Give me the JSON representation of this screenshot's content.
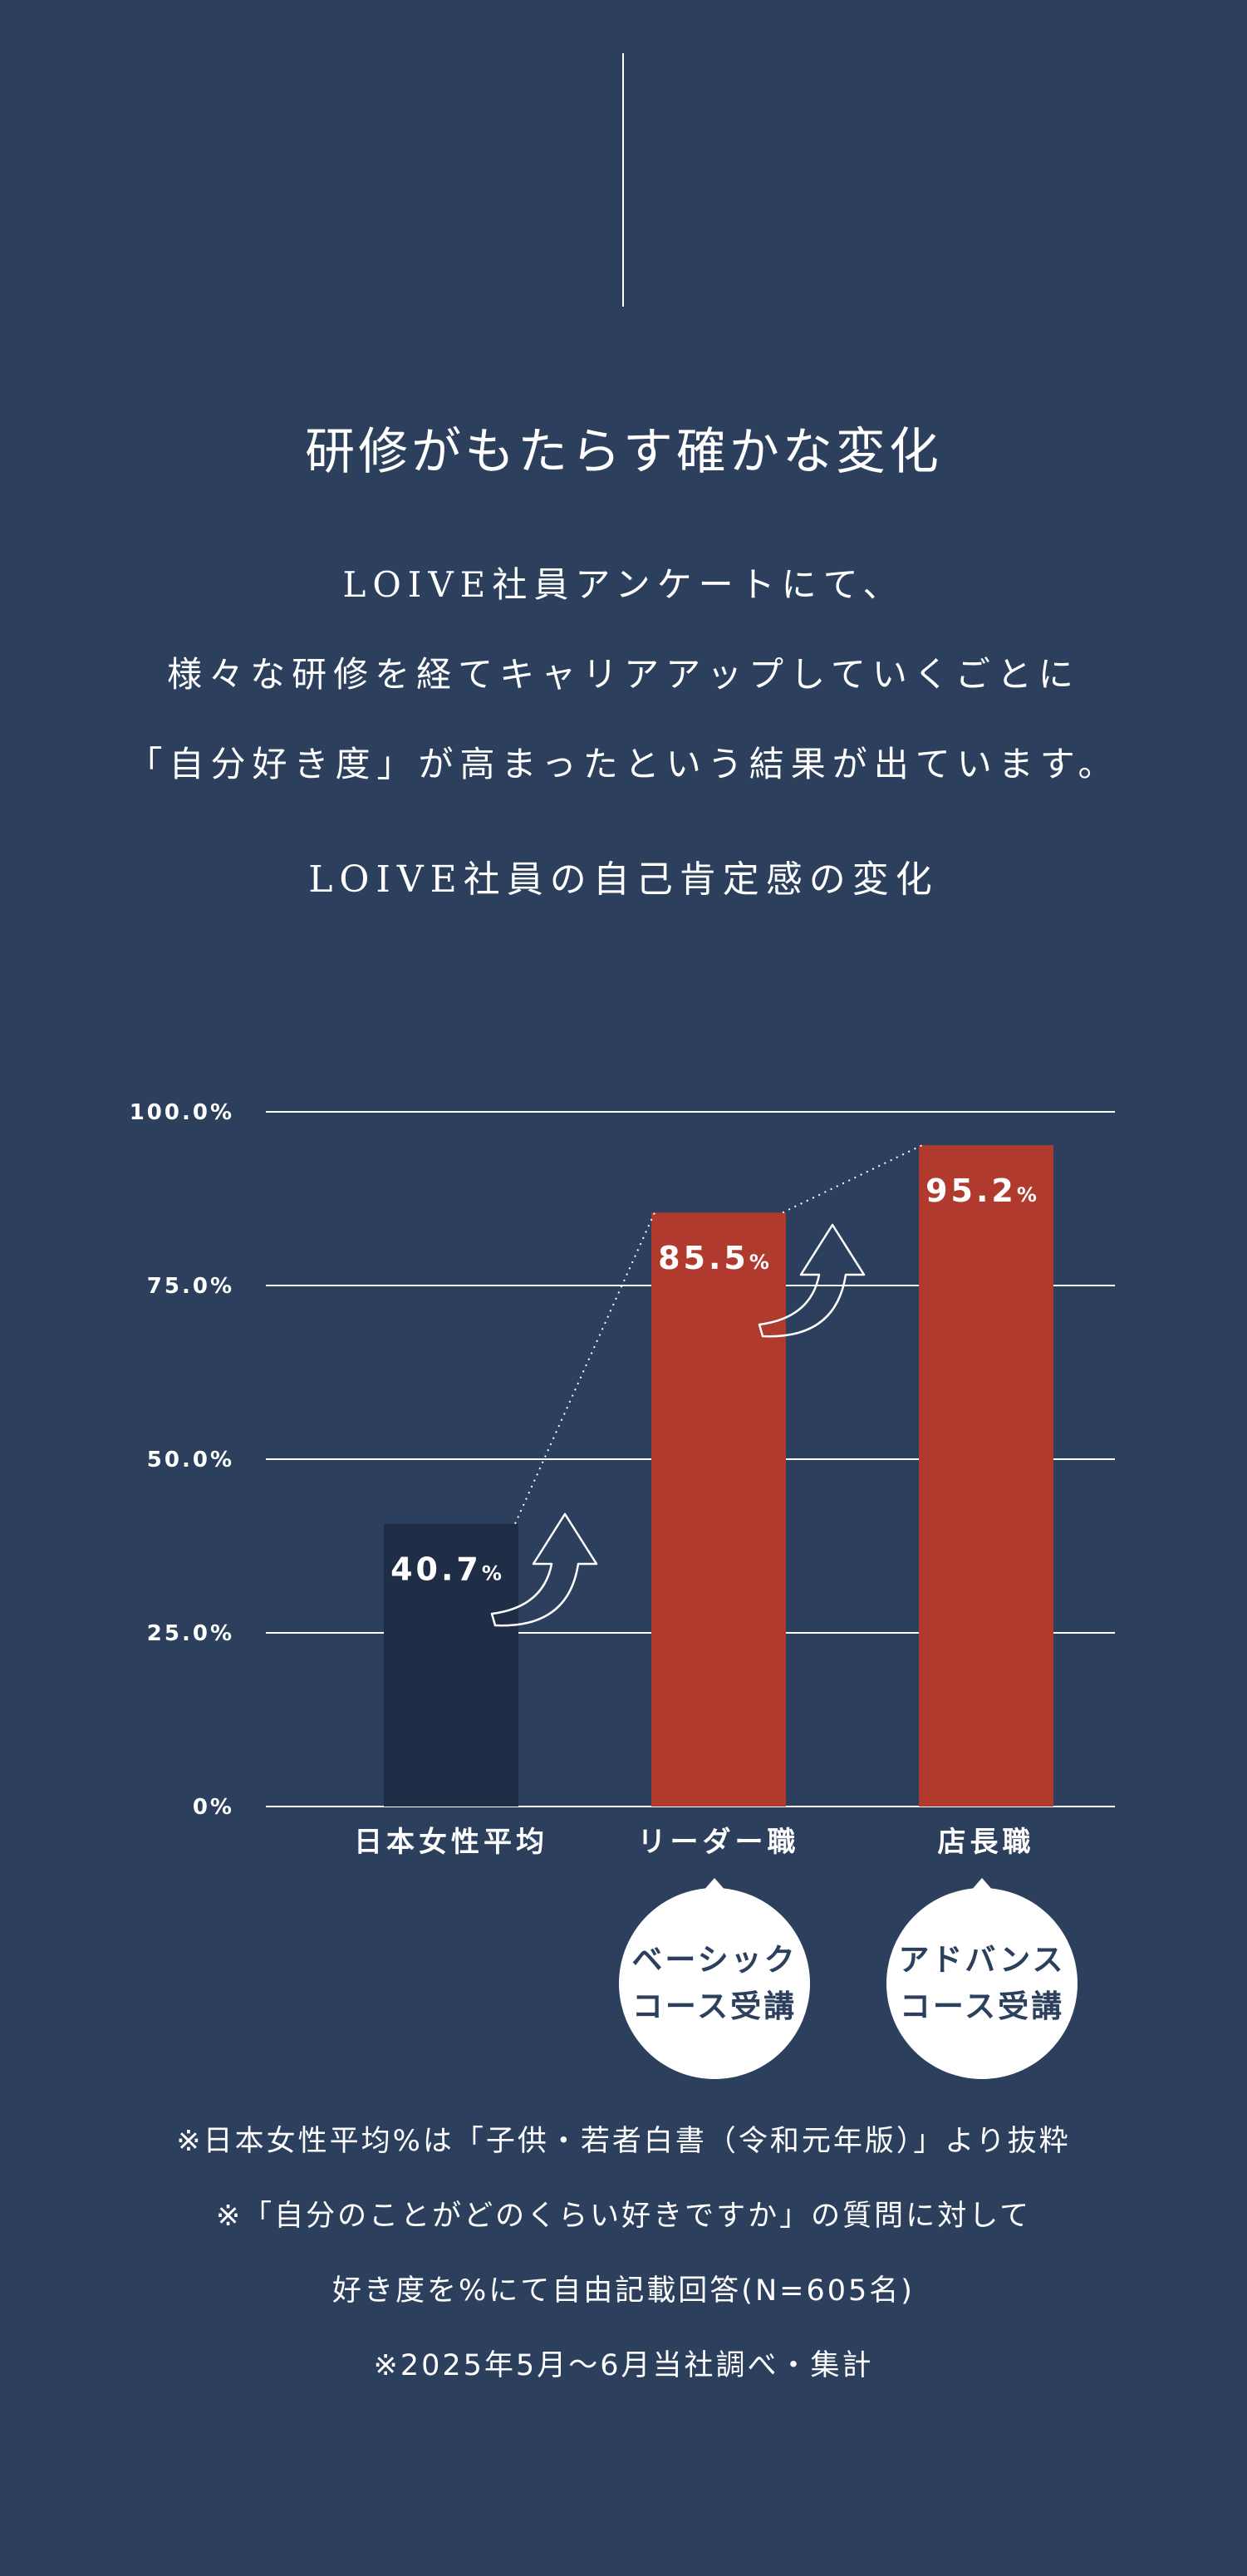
{
  "header": {
    "title": "研修がもたらす確かな変化",
    "intro_lines": [
      "LOIVE社員アンケートにて、",
      "様々な研修を経てキャリアアップしていくごとに",
      "「自分好き度」が高まったという結果が出ています。"
    ],
    "subtitle": "LOIVE社員の自己肯定感の変化"
  },
  "chart_data": {
    "type": "bar",
    "categories": [
      "日本女性平均",
      "リーダー職",
      "店長職"
    ],
    "values": [
      40.7,
      85.5,
      95.2
    ],
    "value_labels": [
      "40.7",
      "85.5",
      "95.2"
    ],
    "value_unit": "%",
    "ylim": [
      0,
      100
    ],
    "yticks": [
      0,
      25,
      50,
      75,
      100
    ],
    "ytick_labels": [
      "0%",
      "25.0%",
      "50.0%",
      "75.0%",
      "100.0%"
    ],
    "grid": true,
    "bar_colors": [
      "#1f2d47",
      "#b03a2e",
      "#b03a2e"
    ],
    "title": "",
    "xlabel": "",
    "ylabel": ""
  },
  "badges": [
    {
      "line1": "ベーシック",
      "line2": "コース受講"
    },
    {
      "line1": "アドバンス",
      "line2": "コース受講"
    }
  ],
  "notes": [
    "※日本女性平均%は「子供・若者白書（令和元年版）」より抜粋",
    "※「自分のことがどのくらい好きですか」の質問に対して",
    "好き度を%にて自由記載回答(N=605名)",
    "※2025年5月〜6月当社調べ・集計"
  ],
  "colors": {
    "background": "#2c405d",
    "bar_dark": "#1f2d47",
    "bar_accent": "#b03a2e",
    "text": "#ffffff"
  }
}
